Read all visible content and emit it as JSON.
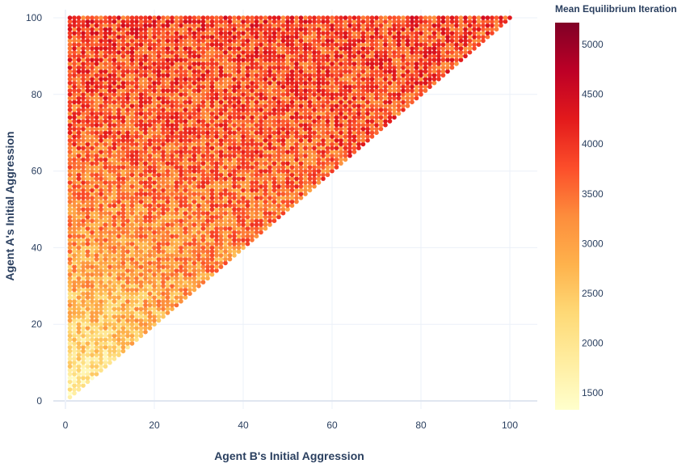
{
  "chart_data": {
    "type": "scatter",
    "title": "",
    "xlabel": "Agent B's Initial Aggression",
    "ylabel": "Agent A's Initial Aggression",
    "xlim": [
      -4,
      106
    ],
    "ylim": [
      -2,
      102
    ],
    "x_ticks": [
      "0",
      "20",
      "40",
      "60",
      "80",
      "100"
    ],
    "y_ticks": [
      "0",
      "20",
      "40",
      "60",
      "80",
      "100"
    ],
    "grid": true,
    "colorbar": {
      "title": "Mean Equilibrium Iteration",
      "range": [
        1330,
        5220
      ],
      "ticks": [
        "1500",
        "2000",
        "2500",
        "3000",
        "3500",
        "4000",
        "4500",
        "5000"
      ],
      "colorscale": [
        "#ffffcc",
        "#ffeda0",
        "#fed976",
        "#feb24c",
        "#fd8d3c",
        "#fc4e2a",
        "#e31a1c",
        "#bd0026",
        "#800026"
      ]
    },
    "domain": "grid of points with 1 <= x <= y <= 100 in steps of 1",
    "value_trend": "mean equilibrium iteration rises from about 1400 near (1,1) to about 4000-5000 toward the upper region"
  }
}
